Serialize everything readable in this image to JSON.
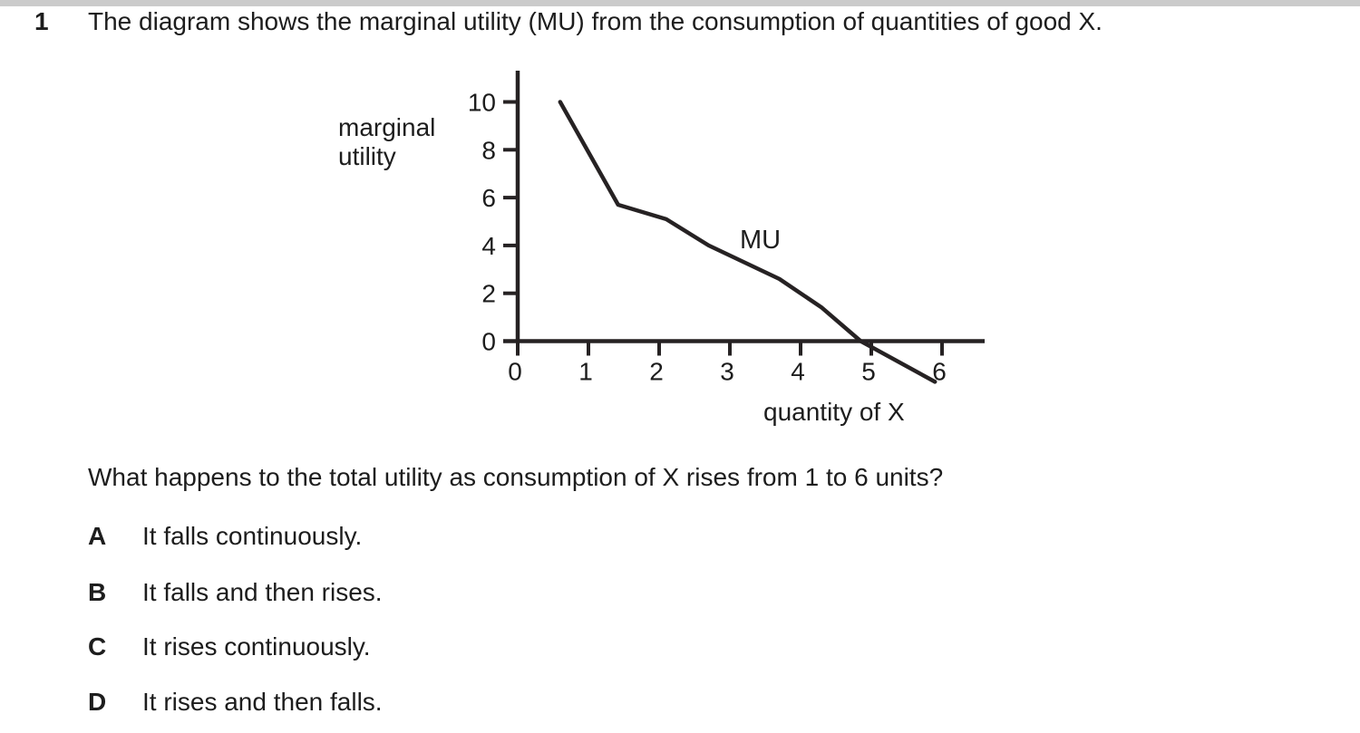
{
  "page": {
    "question_number": "1",
    "question_intro": "The diagram shows the marginal utility (MU) from the consumption of quantities of good X.",
    "question_prompt": "What happens to the total utility as consumption of X rises from 1 to 6 units?",
    "options": [
      {
        "letter": "A",
        "text": "It falls continuously."
      },
      {
        "letter": "B",
        "text": "It falls and then rises."
      },
      {
        "letter": "C",
        "text": "It rises continuously."
      },
      {
        "letter": "D",
        "text": "It rises and then falls."
      }
    ]
  },
  "chart_data": {
    "type": "line",
    "title": "",
    "xlabel": "quantity of X",
    "ylabel": "marginal utility",
    "ylabel_lines": [
      "marginal",
      "utility"
    ],
    "series": [
      {
        "name": "MU",
        "points": [
          [
            0.6,
            10
          ],
          [
            1.42,
            5.7
          ],
          [
            2.1,
            5.1
          ],
          [
            2.7,
            4.0
          ],
          [
            3.7,
            2.6
          ],
          [
            4.3,
            1.4
          ],
          [
            4.85,
            0
          ],
          [
            5.9,
            -1.7
          ]
        ]
      }
    ],
    "series_label": "MU",
    "x_ticks": [
      0,
      1,
      2,
      3,
      4,
      5,
      6
    ],
    "y_ticks": [
      0,
      2,
      4,
      6,
      8,
      10
    ],
    "xlim": [
      0,
      6.6
    ],
    "ylim": [
      -1.9,
      11.3
    ],
    "grid": false,
    "legend": "inline-label",
    "axis_color": "#262223",
    "line_color": "#262223"
  }
}
